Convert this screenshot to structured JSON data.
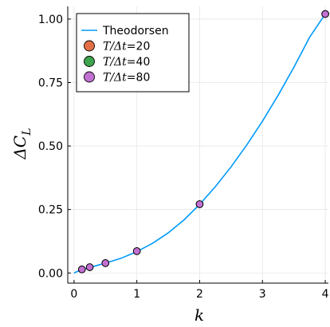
{
  "chart_data": {
    "type": "line",
    "xlabel": "k",
    "ylabel": "ΔC_L",
    "xlim": [
      -0.1,
      4.05
    ],
    "ylim": [
      -0.04,
      1.05
    ],
    "x_ticks": [
      0,
      1,
      2,
      3,
      4
    ],
    "x_tick_labels": [
      "0",
      "1",
      "2",
      "3",
      "4"
    ],
    "y_ticks": [
      0.0,
      0.25,
      0.5,
      0.75,
      1.0
    ],
    "y_tick_labels": [
      "0.00",
      "0.25",
      "0.50",
      "0.75",
      "1.00"
    ],
    "grid": true,
    "legend_position": "top-left",
    "series": [
      {
        "name": "Theodorsen",
        "kind": "line",
        "color": "#009AFA",
        "x": [
          0.0,
          0.1,
          0.2,
          0.3,
          0.4,
          0.5,
          0.75,
          1.0,
          1.25,
          1.5,
          1.75,
          2.0,
          2.25,
          2.5,
          2.75,
          3.0,
          3.25,
          3.5,
          3.75,
          4.0
        ],
        "y": [
          0.0,
          0.011,
          0.018,
          0.025,
          0.032,
          0.039,
          0.058,
          0.084,
          0.117,
          0.158,
          0.209,
          0.27,
          0.34,
          0.418,
          0.504,
          0.598,
          0.7,
          0.81,
          0.928,
          1.02
        ]
      },
      {
        "name_prefix": "T/Δt",
        "name_suffix": "20",
        "kind": "scatter",
        "color": "#E26F46",
        "x": [
          0.125,
          0.25,
          0.5,
          1.0,
          2.0,
          4.0
        ],
        "y": [
          0.014,
          0.023,
          0.039,
          0.086,
          0.271,
          1.02
        ]
      },
      {
        "name_prefix": "T/Δt",
        "name_suffix": "40",
        "kind": "scatter",
        "color": "#3EA44E",
        "x": [
          0.125,
          0.25,
          0.5,
          1.0,
          2.0,
          4.0
        ],
        "y": [
          0.014,
          0.023,
          0.039,
          0.086,
          0.271,
          1.02
        ]
      },
      {
        "name_prefix": "T/Δt",
        "name_suffix": "80",
        "kind": "scatter",
        "color": "#C271D2",
        "x": [
          0.125,
          0.25,
          0.5,
          1.0,
          2.0,
          4.0
        ],
        "y": [
          0.014,
          0.023,
          0.039,
          0.086,
          0.271,
          1.02
        ]
      }
    ]
  }
}
